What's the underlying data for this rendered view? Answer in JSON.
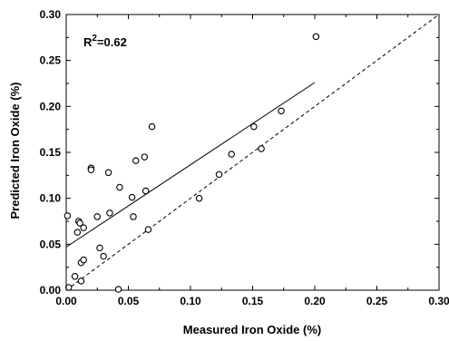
{
  "chart_data": {
    "type": "scatter",
    "xlabel": "Measured Iron Oxide (%)",
    "ylabel": "Predicted Iron Oxide (%)",
    "xlim": [
      0,
      0.3
    ],
    "ylim": [
      0,
      0.3
    ],
    "x_ticks": [
      "0.00",
      "0.05",
      "0.10",
      "0.15",
      "0.20",
      "0.25",
      "0.30"
    ],
    "y_ticks": [
      "0.00",
      "0.05",
      "0.10",
      "0.15",
      "0.20",
      "0.25",
      "0.30"
    ],
    "annotation": {
      "base": "R",
      "superscript": "2",
      "rest": "=0.62"
    },
    "grid": false,
    "points": [
      {
        "x": 0.001,
        "y": 0.081
      },
      {
        "x": 0.002,
        "y": 0.003
      },
      {
        "x": 0.007,
        "y": 0.015
      },
      {
        "x": 0.009,
        "y": 0.063
      },
      {
        "x": 0.01,
        "y": 0.075
      },
      {
        "x": 0.011,
        "y": 0.073
      },
      {
        "x": 0.012,
        "y": 0.01
      },
      {
        "x": 0.012,
        "y": 0.03
      },
      {
        "x": 0.014,
        "y": 0.033
      },
      {
        "x": 0.014,
        "y": 0.068
      },
      {
        "x": 0.02,
        "y": 0.133
      },
      {
        "x": 0.02,
        "y": 0.131
      },
      {
        "x": 0.025,
        "y": 0.08
      },
      {
        "x": 0.027,
        "y": 0.046
      },
      {
        "x": 0.03,
        "y": 0.037
      },
      {
        "x": 0.034,
        "y": 0.128
      },
      {
        "x": 0.035,
        "y": 0.084
      },
      {
        "x": 0.042,
        "y": 0.001
      },
      {
        "x": 0.043,
        "y": 0.112
      },
      {
        "x": 0.053,
        "y": 0.101
      },
      {
        "x": 0.054,
        "y": 0.08
      },
      {
        "x": 0.056,
        "y": 0.141
      },
      {
        "x": 0.063,
        "y": 0.145
      },
      {
        "x": 0.064,
        "y": 0.108
      },
      {
        "x": 0.066,
        "y": 0.066
      },
      {
        "x": 0.069,
        "y": 0.178
      },
      {
        "x": 0.107,
        "y": 0.1
      },
      {
        "x": 0.123,
        "y": 0.126
      },
      {
        "x": 0.133,
        "y": 0.148
      },
      {
        "x": 0.151,
        "y": 0.178
      },
      {
        "x": 0.157,
        "y": 0.154
      },
      {
        "x": 0.173,
        "y": 0.195
      },
      {
        "x": 0.201,
        "y": 0.276
      }
    ],
    "lines": [
      {
        "style": "solid",
        "x": [
          0.0,
          0.2
        ],
        "y": [
          0.047,
          0.226
        ]
      },
      {
        "style": "dashed",
        "x": [
          0.0,
          0.3
        ],
        "y": [
          0.0,
          0.3
        ]
      }
    ]
  }
}
